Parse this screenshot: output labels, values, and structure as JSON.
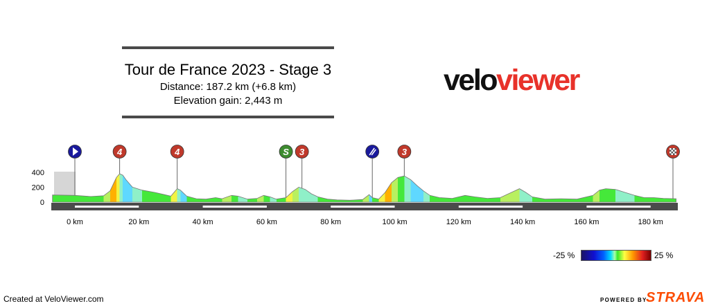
{
  "header": {
    "title": "Tour de France 2023 - Stage 3",
    "distance": "Distance: 187.2 km (+6.8 km)",
    "elevation": "Elevation gain: 2,443 m"
  },
  "logo": {
    "part1": "velo",
    "part2": "viewer"
  },
  "chart_data": {
    "type": "area",
    "x_unit": "km",
    "y_unit": "m",
    "xlim": [
      -7,
      188
    ],
    "ylim": [
      0,
      400
    ],
    "y_ticks": [
      0,
      200,
      400
    ],
    "x_ticks": [
      0,
      20,
      40,
      60,
      80,
      100,
      120,
      140,
      160,
      180
    ],
    "x_tick_labels": [
      "0 km",
      "20 km",
      "40 km",
      "60 km",
      "80 km",
      "100 km",
      "120 km",
      "140 km",
      "160 km",
      "180 km"
    ],
    "profile": [
      [
        -7,
        95
      ],
      [
        0,
        90
      ],
      [
        5,
        75
      ],
      [
        9,
        85
      ],
      [
        11,
        150
      ],
      [
        12,
        240
      ],
      [
        13,
        330
      ],
      [
        14,
        380
      ],
      [
        15,
        360
      ],
      [
        16,
        300
      ],
      [
        18,
        200
      ],
      [
        21,
        160
      ],
      [
        25,
        130
      ],
      [
        28,
        100
      ],
      [
        30,
        80
      ],
      [
        32,
        180
      ],
      [
        33,
        160
      ],
      [
        35,
        80
      ],
      [
        38,
        45
      ],
      [
        41,
        40
      ],
      [
        44,
        60
      ],
      [
        46,
        45
      ],
      [
        49,
        90
      ],
      [
        51,
        80
      ],
      [
        54,
        40
      ],
      [
        57,
        50
      ],
      [
        59,
        90
      ],
      [
        61,
        70
      ],
      [
        63,
        40
      ],
      [
        66,
        60
      ],
      [
        68,
        140
      ],
      [
        70,
        200
      ],
      [
        72,
        170
      ],
      [
        74,
        110
      ],
      [
        76,
        70
      ],
      [
        79,
        40
      ],
      [
        82,
        30
      ],
      [
        86,
        25
      ],
      [
        90,
        35
      ],
      [
        92,
        100
      ],
      [
        93,
        60
      ],
      [
        95,
        40
      ],
      [
        97,
        130
      ],
      [
        99,
        260
      ],
      [
        101,
        330
      ],
      [
        103,
        350
      ],
      [
        105,
        300
      ],
      [
        107,
        220
      ],
      [
        109,
        150
      ],
      [
        111,
        90
      ],
      [
        114,
        60
      ],
      [
        118,
        50
      ],
      [
        122,
        90
      ],
      [
        125,
        70
      ],
      [
        129,
        50
      ],
      [
        133,
        60
      ],
      [
        137,
        140
      ],
      [
        139,
        180
      ],
      [
        141,
        130
      ],
      [
        143,
        70
      ],
      [
        147,
        40
      ],
      [
        152,
        45
      ],
      [
        157,
        40
      ],
      [
        162,
        90
      ],
      [
        164,
        160
      ],
      [
        166,
        180
      ],
      [
        169,
        170
      ],
      [
        172,
        130
      ],
      [
        175,
        90
      ],
      [
        178,
        60
      ],
      [
        181,
        60
      ],
      [
        184,
        50
      ],
      [
        188,
        45
      ]
    ],
    "markers": [
      {
        "km": 0,
        "label": "",
        "kind": "start",
        "color": "#1a1a9c"
      },
      {
        "km": 14,
        "label": "4",
        "kind": "climb",
        "color": "#c0392b"
      },
      {
        "km": 32,
        "label": "4",
        "kind": "climb",
        "color": "#c0392b"
      },
      {
        "km": 66,
        "label": "S",
        "kind": "sprint",
        "color": "#3d8b2f"
      },
      {
        "km": 71,
        "label": "3",
        "kind": "climb",
        "color": "#c0392b"
      },
      {
        "km": 93,
        "label": "",
        "kind": "feed",
        "color": "#1a1a9c"
      },
      {
        "km": 103,
        "label": "3",
        "kind": "climb",
        "color": "#c0392b"
      },
      {
        "km": 187,
        "label": "",
        "kind": "finish",
        "color": "#c0392b"
      }
    ]
  },
  "scale": {
    "min_label": "-25 %",
    "max_label": "25 %"
  },
  "footer": {
    "created": "Created at VeloViewer.com",
    "powered": "POWERED BY",
    "brand": "STRAVA"
  }
}
